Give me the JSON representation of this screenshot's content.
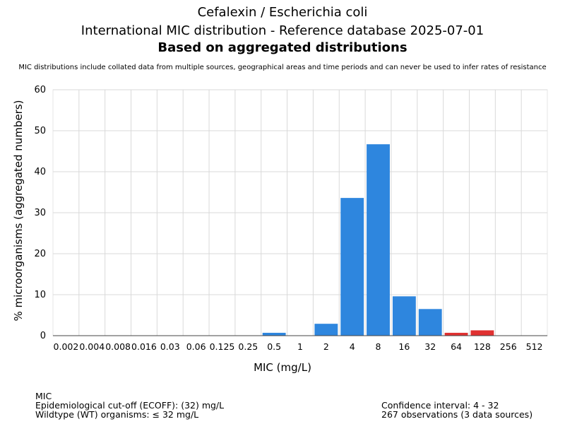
{
  "header": {
    "title_line1": "Cefalexin / Escherichia coli",
    "title_line2": "International MIC distribution - Reference database 2025-07-01",
    "title_line3": "Based on aggregated distributions",
    "subtitle": "MIC distributions include collated data from multiple sources, geographical areas and time periods and can never be used to infer rates of resistance"
  },
  "footer": {
    "left": {
      "line1": "MIC",
      "line2": "Epidemiological cut-off (ECOFF): (32) mg/L",
      "line3": "Wildtype (WT) organisms: ≤ 32 mg/L"
    },
    "right": {
      "line1": "Confidence interval: 4 - 32",
      "line2": "267 observations (3 data sources)"
    }
  },
  "chart_data": {
    "type": "bar",
    "xlabel": "MIC (mg/L)",
    "ylabel": "% microorganisms (aggregated numbers)",
    "ylim": [
      0,
      60
    ],
    "yticks": [
      0,
      10,
      20,
      30,
      40,
      50,
      60
    ],
    "grid": true,
    "categories": [
      "0.002",
      "0.004",
      "0.008",
      "0.016",
      "0.03",
      "0.06",
      "0.125",
      "0.25",
      "0.5",
      "1",
      "2",
      "4",
      "8",
      "16",
      "32",
      "64",
      "128",
      "256",
      "512"
    ],
    "values": [
      0,
      0,
      0,
      0,
      0,
      0,
      0,
      0,
      0.7,
      0,
      2.9,
      33.6,
      46.7,
      9.6,
      6.5,
      0.7,
      1.3,
      0,
      0
    ],
    "colors": [
      "#2e86de",
      "#2e86de",
      "#2e86de",
      "#2e86de",
      "#2e86de",
      "#2e86de",
      "#2e86de",
      "#2e86de",
      "#2e86de",
      "#2e86de",
      "#2e86de",
      "#2e86de",
      "#2e86de",
      "#2e86de",
      "#2e86de",
      "#e03131",
      "#e03131",
      "#e03131",
      "#e03131"
    ]
  }
}
